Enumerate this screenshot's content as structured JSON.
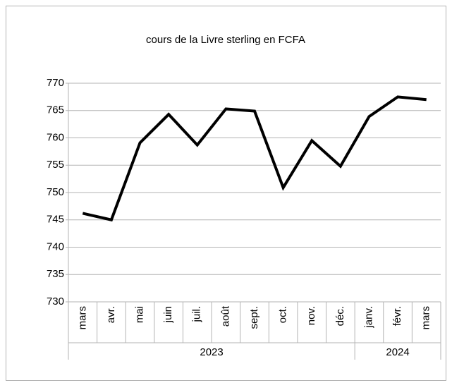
{
  "chart_data": {
    "type": "line",
    "title": "cours de la Livre sterling en FCFA",
    "categories": [
      "mars",
      "avr.",
      "mai",
      "juin",
      "juil.",
      "août",
      "sept.",
      "oct.",
      "nov.",
      "déc.",
      "janv.",
      "févr.",
      "mars"
    ],
    "groups": [
      {
        "label": "2023",
        "span": 10
      },
      {
        "label": "2024",
        "span": 3
      }
    ],
    "series": [
      {
        "color": "#000000",
        "values": [
          746.2,
          745.0,
          759.1,
          764.3,
          758.7,
          765.3,
          764.9,
          750.9,
          759.5,
          754.8,
          763.9,
          767.5,
          767.0
        ]
      }
    ],
    "ylim": [
      730,
      770
    ],
    "yticks": [
      730,
      735,
      740,
      745,
      750,
      755,
      760,
      765,
      770
    ],
    "grid": true
  }
}
